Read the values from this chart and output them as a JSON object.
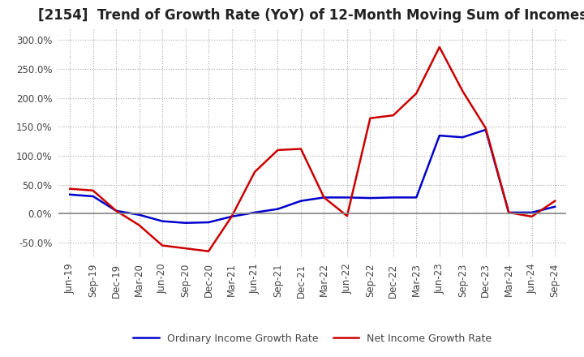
{
  "title": "[2154]  Trend of Growth Rate (YoY) of 12-Month Moving Sum of Incomes",
  "ylim": [
    -0.75,
    3.2
  ],
  "yticks": [
    -0.5,
    0.0,
    0.5,
    1.0,
    1.5,
    2.0,
    2.5,
    3.0
  ],
  "ytick_labels": [
    "-50.0%",
    "0.0%",
    "50.0%",
    "100.0%",
    "150.0%",
    "200.0%",
    "250.0%",
    "300.0%"
  ],
  "x_labels": [
    "Jun-19",
    "Sep-19",
    "Dec-19",
    "Mar-20",
    "Jun-20",
    "Sep-20",
    "Dec-20",
    "Mar-21",
    "Jun-21",
    "Sep-21",
    "Dec-21",
    "Mar-22",
    "Jun-22",
    "Sep-22",
    "Dec-22",
    "Mar-23",
    "Jun-23",
    "Sep-23",
    "Dec-23",
    "Mar-24",
    "Jun-24",
    "Sep-24"
  ],
  "ordinary_income": [
    0.33,
    0.3,
    0.05,
    -0.02,
    -0.13,
    -0.16,
    -0.15,
    -0.05,
    0.02,
    0.08,
    0.22,
    0.28,
    0.28,
    0.27,
    0.28,
    0.28,
    1.35,
    1.32,
    1.45,
    0.02,
    0.02,
    0.12
  ],
  "net_income": [
    0.43,
    0.4,
    0.05,
    -0.2,
    -0.55,
    -0.6,
    -0.65,
    -0.05,
    0.72,
    1.1,
    1.12,
    0.28,
    -0.04,
    1.65,
    1.7,
    2.08,
    2.88,
    2.12,
    1.48,
    0.02,
    -0.05,
    0.22
  ],
  "ordinary_color": "#0000cc",
  "net_color": "#cc0000",
  "grid_color": "#aaaaaa",
  "zero_line_color": "#888888",
  "background_color": "#ffffff",
  "legend_ordinary": "Ordinary Income Growth Rate",
  "legend_net": "Net Income Growth Rate",
  "title_fontsize": 12,
  "tick_fontsize": 8.5,
  "legend_fontsize": 9
}
